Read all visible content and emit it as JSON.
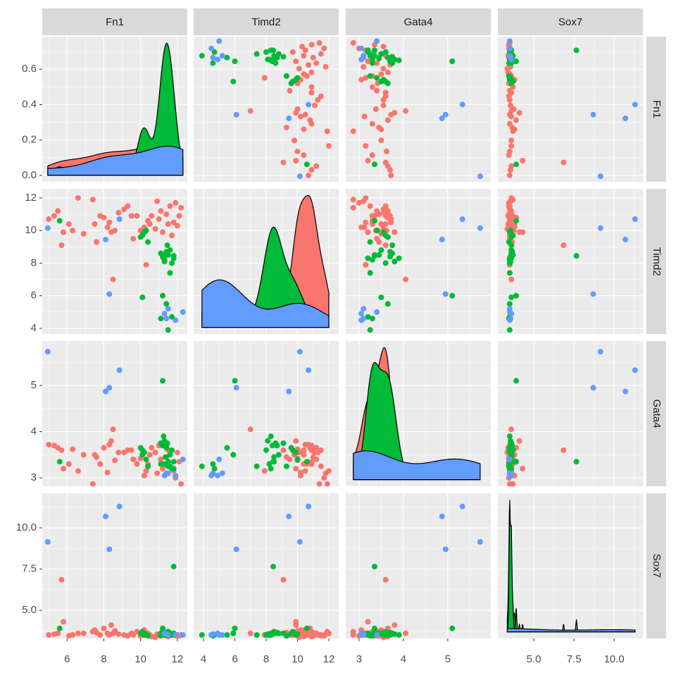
{
  "chart_data": {
    "type": "pairs",
    "variables": [
      "Fn1",
      "Timd2",
      "Gata4",
      "Sox7"
    ],
    "xlims": [
      [
        4.65,
        12.54
      ],
      [
        3.37,
        12.63
      ],
      [
        2.7,
        5.97
      ],
      [
        2.76,
        11.79
      ]
    ],
    "xticks": [
      [
        6,
        8,
        10,
        12
      ],
      [
        4,
        6,
        8,
        10,
        12
      ],
      [
        3,
        4,
        5
      ],
      [
        {
          "value": 5,
          "label": "5.0"
        },
        {
          "value": 7.5,
          "label": "7.5"
        },
        {
          "value": 10,
          "label": "10.0"
        }
      ]
    ],
    "ylims": [
      [
        -0.036,
        0.784
      ],
      [
        3.65,
        12.56
      ],
      [
        2.82,
        5.96
      ],
      [
        3.29,
        12.1
      ]
    ],
    "yticks": [
      [
        {
          "value": 0,
          "label": "0.0"
        },
        {
          "value": 0.2,
          "label": "0.2"
        },
        {
          "value": 0.4,
          "label": "0.4"
        },
        {
          "value": 0.6,
          "label": "0.6"
        }
      ],
      [
        4,
        6,
        8,
        10,
        12
      ],
      [
        3,
        4,
        5
      ],
      [
        {
          "value": 5,
          "label": "5.0"
        },
        {
          "value": 7.5,
          "label": "7.5"
        },
        {
          "value": 10,
          "label": "10.0"
        }
      ]
    ],
    "series": [
      {
        "color": "#F8766D",
        "points": [
          [
            5.0,
            10.7,
            3.72,
            3.5
          ],
          [
            5.3,
            10.9,
            3.7,
            3.55
          ],
          [
            5.5,
            11.2,
            3.65,
            3.6
          ],
          [
            5.7,
            9.1,
            3.6,
            6.85
          ],
          [
            5.8,
            9.9,
            3.2,
            4.3
          ],
          [
            6.1,
            10.4,
            3.3,
            3.45
          ],
          [
            6.3,
            10.0,
            3.62,
            3.5
          ],
          [
            6.6,
            12.0,
            3.15,
            3.6
          ],
          [
            7.4,
            11.9,
            2.87,
            3.7
          ],
          [
            7.5,
            10.4,
            3.5,
            3.8
          ],
          [
            7.6,
            9.3,
            3.45,
            3.65
          ],
          [
            7.8,
            10.9,
            3.3,
            3.5
          ],
          [
            8.0,
            10.8,
            3.65,
            3.9
          ],
          [
            8.2,
            10.2,
            3.12,
            3.6
          ],
          [
            8.4,
            9.9,
            3.8,
            4.1
          ],
          [
            8.5,
            7.0,
            4.05,
            3.6
          ],
          [
            8.6,
            10.0,
            3.38,
            3.75
          ],
          [
            8.8,
            11.1,
            3.55,
            3.55
          ],
          [
            9.1,
            11.3,
            3.55,
            3.5
          ],
          [
            9.3,
            11.5,
            3.6,
            3.45
          ],
          [
            9.5,
            10.9,
            3.6,
            3.6
          ],
          [
            9.8,
            10.9,
            3.3,
            3.7
          ],
          [
            10.0,
            10.0,
            3.42,
            3.45
          ],
          [
            10.2,
            10.2,
            3.05,
            3.8
          ],
          [
            10.3,
            7.9,
            3.15,
            3.5
          ],
          [
            10.4,
            10.6,
            3.3,
            3.6
          ],
          [
            10.5,
            10.4,
            3.5,
            3.5
          ],
          [
            10.6,
            10.9,
            3.65,
            3.4
          ],
          [
            10.8,
            10.1,
            3.55,
            3.35
          ],
          [
            11.0,
            10.7,
            3.7,
            3.5
          ],
          [
            11.1,
            11.2,
            3.4,
            3.6
          ],
          [
            11.2,
            9.9,
            3.2,
            3.55
          ],
          [
            11.4,
            11.0,
            3.45,
            3.45
          ],
          [
            11.5,
            10.4,
            3.6,
            3.4
          ],
          [
            11.6,
            11.5,
            3.25,
            3.5
          ],
          [
            11.7,
            9.7,
            3.6,
            3.5
          ],
          [
            11.8,
            10.5,
            3.15,
            3.5
          ],
          [
            11.9,
            11.7,
            3.0,
            3.45
          ],
          [
            12.0,
            10.3,
            3.55,
            3.5
          ],
          [
            12.1,
            10.9,
            3.35,
            3.45
          ],
          [
            12.2,
            11.4,
            2.87,
            3.5
          ],
          [
            10.9,
            11.8,
            3.1,
            3.55
          ],
          [
            9.6,
            9.5,
            3.4,
            3.5
          ],
          [
            6.9,
            9.8,
            3.5,
            3.6
          ],
          [
            8.3,
            10.5,
            3.72,
            3.5
          ]
        ]
      },
      {
        "color": "#00BA38",
        "points": [
          [
            5.6,
            10.6,
            3.35,
            3.9
          ],
          [
            10.0,
            9.6,
            3.65,
            3.6
          ],
          [
            10.1,
            9.7,
            3.6,
            3.7
          ],
          [
            10.2,
            9.9,
            3.55,
            3.5
          ],
          [
            10.3,
            10.0,
            3.4,
            3.55
          ],
          [
            10.4,
            9.3,
            3.25,
            3.45
          ],
          [
            10.1,
            5.9,
            3.5,
            3.6
          ],
          [
            11.1,
            8.6,
            3.75,
            3.6
          ],
          [
            11.2,
            8.4,
            3.7,
            3.55
          ],
          [
            11.3,
            8.2,
            3.3,
            3.5
          ],
          [
            11.5,
            8.5,
            3.35,
            3.7
          ],
          [
            11.8,
            8.3,
            3.2,
            3.6
          ],
          [
            11.7,
            8.0,
            3.6,
            3.5
          ],
          [
            11.4,
            8.7,
            3.7,
            3.65
          ],
          [
            11.6,
            7.4,
            3.25,
            3.5
          ],
          [
            11.2,
            6.0,
            5.1,
            3.9
          ],
          [
            11.4,
            5.5,
            3.65,
            3.5
          ],
          [
            11.1,
            4.6,
            3.3,
            3.45
          ],
          [
            11.5,
            3.9,
            3.25,
            3.5
          ],
          [
            11.7,
            4.7,
            3.2,
            3.5
          ],
          [
            11.3,
            8.1,
            3.8,
            3.55
          ],
          [
            11.6,
            8.8,
            3.5,
            3.6
          ],
          [
            11.8,
            8.45,
            3.35,
            7.65
          ],
          [
            11.25,
            8.3,
            3.9,
            3.5
          ],
          [
            11.35,
            8.5,
            3.45,
            3.6
          ],
          [
            11.45,
            9.1,
            3.75,
            3.6
          ]
        ]
      },
      {
        "color": "#619CFF",
        "points": [
          [
            4.95,
            10.15,
            5.73,
            9.15
          ],
          [
            8.1,
            9.45,
            4.87,
            10.7
          ],
          [
            8.3,
            6.1,
            4.95,
            8.7
          ],
          [
            8.85,
            10.7,
            5.33,
            11.3
          ],
          [
            11.3,
            4.9,
            3.05,
            3.6
          ],
          [
            11.5,
            5.2,
            3.1,
            3.5
          ],
          [
            11.9,
            4.5,
            3.05,
            3.5
          ],
          [
            12.3,
            5.0,
            3.4,
            3.5
          ],
          [
            11.4,
            4.6,
            3.1,
            3.55
          ]
        ]
      }
    ]
  }
}
